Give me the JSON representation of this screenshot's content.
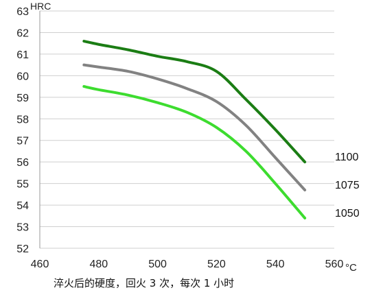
{
  "chart_data": {
    "type": "line",
    "ylabel": "HRC",
    "xlabel": "°C",
    "xlim": [
      460,
      560
    ],
    "ylim": [
      52,
      63
    ],
    "x_ticks": [
      460,
      480,
      500,
      520,
      540,
      560
    ],
    "y_ticks": [
      52,
      53,
      54,
      55,
      56,
      57,
      58,
      59,
      60,
      61,
      62,
      63
    ],
    "grid": "horizontal",
    "caption": "淬火后的硬度，回火 3 次，每次 1 小时",
    "series": [
      {
        "name": "1100",
        "color": "#1b7d14",
        "x": [
          475,
          480,
          490,
          500,
          510,
          520,
          530,
          540,
          550
        ],
        "y": [
          61.6,
          61.45,
          61.2,
          60.9,
          60.65,
          60.2,
          58.9,
          57.5,
          56.0
        ]
      },
      {
        "name": "1075",
        "color": "#828282",
        "x": [
          475,
          480,
          490,
          500,
          510,
          520,
          530,
          540,
          550
        ],
        "y": [
          60.5,
          60.4,
          60.2,
          59.85,
          59.4,
          58.8,
          57.7,
          56.2,
          54.7
        ]
      },
      {
        "name": "1050",
        "color": "#3ddc2f",
        "x": [
          475,
          480,
          490,
          500,
          510,
          520,
          530,
          540,
          550
        ],
        "y": [
          59.5,
          59.35,
          59.1,
          58.75,
          58.3,
          57.6,
          56.5,
          55.0,
          53.4
        ]
      }
    ]
  }
}
